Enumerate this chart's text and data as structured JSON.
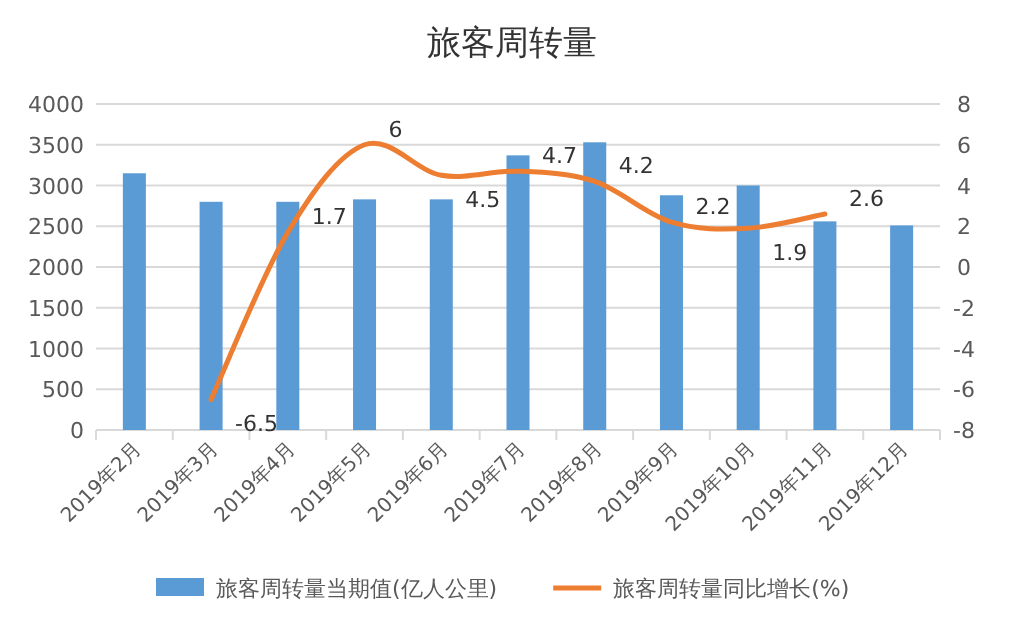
{
  "chart_data": {
    "type": "bar",
    "title": "旅客周转量",
    "categories": [
      "2019年2月",
      "2019年3月",
      "2019年4月",
      "2019年5月",
      "2019年6月",
      "2019年7月",
      "2019年8月",
      "2019年9月",
      "2019年10月",
      "2019年11月",
      "2019年12月"
    ],
    "series": [
      {
        "name": "旅客周转量当期值(亿人公里)",
        "color": "#5b9bd5",
        "values": [
          3150,
          2800,
          2800,
          2830,
          2830,
          3370,
          3530,
          2880,
          3000,
          2560,
          2510
        ]
      },
      {
        "name": "旅客周转量同比增长(%)",
        "type": "line",
        "axis": "y2",
        "color": "#ed7d31",
        "values": [
          null,
          -6.5,
          1.7,
          6,
          4.5,
          4.7,
          4.2,
          2.2,
          1.9,
          2.6,
          null
        ],
        "value_labels": [
          null,
          "-6.5",
          "1.7",
          "6",
          "4.5",
          "4.7",
          "4.2",
          "2.2",
          "1.9",
          "2.6",
          null
        ]
      }
    ],
    "ylim": [
      0,
      4000
    ],
    "yticks": [
      0,
      500,
      1000,
      1500,
      2000,
      2500,
      3000,
      3500,
      4000
    ],
    "y2lim": [
      -8,
      8
    ],
    "y2ticks": [
      -8,
      -6,
      -4,
      -2,
      0,
      2,
      4,
      6,
      8
    ],
    "grid": "y",
    "legend": "bottom",
    "marker": "none",
    "line_style": "solid"
  }
}
